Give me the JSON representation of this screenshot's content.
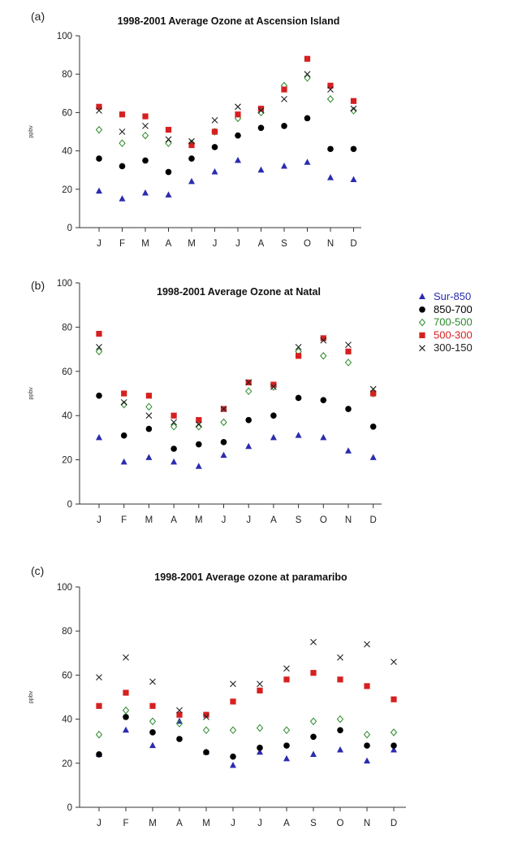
{
  "legend": [
    {
      "name": "Sur-850",
      "marker": "triangle",
      "color": "#2b2bb0"
    },
    {
      "name": "850-700",
      "marker": "circle",
      "color": "#000000"
    },
    {
      "name": "700-500",
      "marker": "diamond-open",
      "color": "#2a8a2a"
    },
    {
      "name": "500-300",
      "marker": "square",
      "color": "#d62020"
    },
    {
      "name": "300-150",
      "marker": "cross",
      "color": "#222222"
    }
  ],
  "chart_data": [
    {
      "type": "scatter",
      "panel_label": "(a)",
      "title": "1998-2001 Average Ozone at Ascension Island",
      "ylabel": "ppbv",
      "xlabel": "",
      "categories": [
        "J",
        "F",
        "M",
        "A",
        "M",
        "J",
        "J",
        "A",
        "S",
        "O",
        "N",
        "D"
      ],
      "ylim": [
        0,
        100
      ],
      "yticks": [
        0,
        20,
        40,
        60,
        80,
        100
      ],
      "series": [
        {
          "name": "Sur-850",
          "values": [
            19,
            15,
            18,
            17,
            24,
            29,
            35,
            30,
            32,
            34,
            26,
            25
          ]
        },
        {
          "name": "850-700",
          "values": [
            36,
            32,
            35,
            29,
            36,
            42,
            48,
            52,
            53,
            57,
            41,
            41
          ]
        },
        {
          "name": "700-500",
          "values": [
            51,
            44,
            48,
            44,
            44,
            50,
            57,
            60,
            74,
            78,
            67,
            61
          ]
        },
        {
          "name": "500-300",
          "values": [
            63,
            59,
            58,
            51,
            43,
            50,
            59,
            62,
            72,
            88,
            74,
            66
          ]
        },
        {
          "name": "300-150",
          "values": [
            61,
            50,
            53,
            46,
            45,
            56,
            63,
            61,
            67,
            80,
            72,
            62
          ]
        }
      ]
    },
    {
      "type": "scatter",
      "panel_label": "(b)",
      "title": "1998-2001 Average Ozone at Natal",
      "ylabel": "ppbv",
      "xlabel": "",
      "categories": [
        "J",
        "F",
        "M",
        "A",
        "M",
        "J",
        "J",
        "A",
        "S",
        "O",
        "N",
        "D"
      ],
      "ylim": [
        0,
        100
      ],
      "yticks": [
        0,
        20,
        40,
        60,
        80,
        100
      ],
      "series": [
        {
          "name": "Sur-850",
          "values": [
            30,
            19,
            21,
            19,
            17,
            22,
            26,
            30,
            31,
            30,
            24,
            21
          ]
        },
        {
          "name": "850-700",
          "values": [
            49,
            31,
            34,
            25,
            27,
            28,
            38,
            40,
            48,
            47,
            43,
            35
          ]
        },
        {
          "name": "700-500",
          "values": [
            69,
            45,
            44,
            35,
            35,
            37,
            51,
            53,
            69,
            67,
            64,
            50
          ]
        },
        {
          "name": "500-300",
          "values": [
            77,
            50,
            49,
            40,
            38,
            43,
            55,
            54,
            67,
            75,
            69,
            50
          ]
        },
        {
          "name": "300-150",
          "values": [
            71,
            46,
            40,
            37,
            36,
            43,
            55,
            53,
            71,
            74,
            72,
            52
          ]
        }
      ]
    },
    {
      "type": "scatter",
      "panel_label": "(c)",
      "title": "1998-2001 Average ozone at paramaribo",
      "ylabel": "ppbv",
      "xlabel": "",
      "categories": [
        "J",
        "F",
        "M",
        "A",
        "M",
        "J",
        "J",
        "A",
        "S",
        "O",
        "N",
        "D"
      ],
      "ylim": [
        0,
        100
      ],
      "yticks": [
        0,
        20,
        40,
        60,
        80,
        100
      ],
      "series": [
        {
          "name": "Sur-850",
          "values": [
            24,
            35,
            28,
            39,
            25,
            19,
            25,
            22,
            24,
            26,
            21,
            26
          ]
        },
        {
          "name": "850-700",
          "values": [
            24,
            41,
            34,
            31,
            25,
            23,
            27,
            28,
            32,
            35,
            28,
            28
          ]
        },
        {
          "name": "700-500",
          "values": [
            33,
            44,
            39,
            38,
            35,
            35,
            36,
            35,
            39,
            40,
            33,
            34
          ]
        },
        {
          "name": "500-300",
          "values": [
            46,
            52,
            46,
            42,
            42,
            48,
            53,
            58,
            61,
            58,
            55,
            49
          ]
        },
        {
          "name": "300-150",
          "values": [
            59,
            68,
            57,
            44,
            41,
            56,
            56,
            63,
            75,
            68,
            74,
            66
          ]
        }
      ]
    }
  ]
}
